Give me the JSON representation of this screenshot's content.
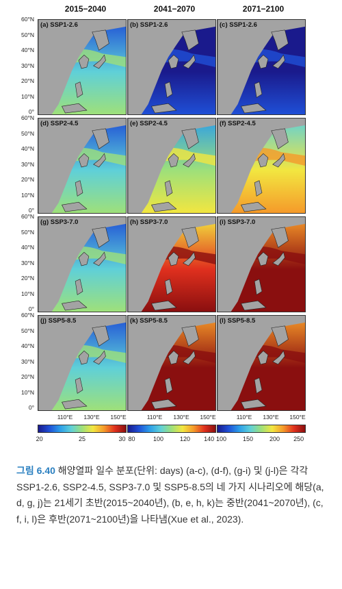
{
  "columns": [
    "2015−2040",
    "2041−2070",
    "2071−2100"
  ],
  "lat_labels": [
    "60°N",
    "50°N",
    "40°N",
    "30°N",
    "20°N",
    "10°N",
    "0°"
  ],
  "lon_labels": [
    "110°E",
    "130°E",
    "150°E"
  ],
  "rows": [
    {
      "scenario": "SSP1-2.6",
      "panels": [
        "(a) SSP1-2.6",
        "(b) SSP1-2.6",
        "(c) SSP1-2.6"
      ]
    },
    {
      "scenario": "SSP2-4.5",
      "panels": [
        "(d) SSP2-4.5",
        "(e) SSP2-4.5",
        "(f) SSP2-4.5"
      ]
    },
    {
      "scenario": "SSP3-7.0",
      "panels": [
        "(g) SSP3-7.0",
        "(h) SSP3-7.0",
        "(i) SSP3-7.0"
      ]
    },
    {
      "scenario": "SSP5-8.5",
      "panels": [
        "(j) SSP5-8.5",
        "(k) SSP5-8.5",
        "(l) SSP5-8.5"
      ]
    }
  ],
  "colorbars": [
    {
      "ticks": [
        "20",
        "25",
        "30"
      ]
    },
    {
      "ticks": [
        "80",
        "100",
        "120",
        "140"
      ]
    },
    {
      "ticks": [
        "100",
        "150",
        "200",
        "250"
      ]
    }
  ],
  "colors": {
    "land": "#a3a3a3",
    "caption_label": "#2a7fc0",
    "scale": [
      "#1a1a8c",
      "#1f4fd6",
      "#2c9ee8",
      "#5fd0d8",
      "#9ee07a",
      "#f2e640",
      "#f59a2a",
      "#e0301e",
      "#8a0f0f"
    ]
  },
  "caption": {
    "label": "그림 6.40",
    "text": " 해양열파 일수 분포(단위: days) (a-c), (d-f), (g-i) 및 (j-l)은 각각 SSP1-2.6, SSP2-4.5, SSP3-7.0 및 SSP5-8.5의 네 가지 시나리오에 해당(a, d, g, j)는 21세기 초반(2015~2040년), (b, e, h, k)는 중반(2041~2070년), (c, f, i, l)은 후반(2071~2100년)을 나타냄(Xue et al., 2023)."
  }
}
